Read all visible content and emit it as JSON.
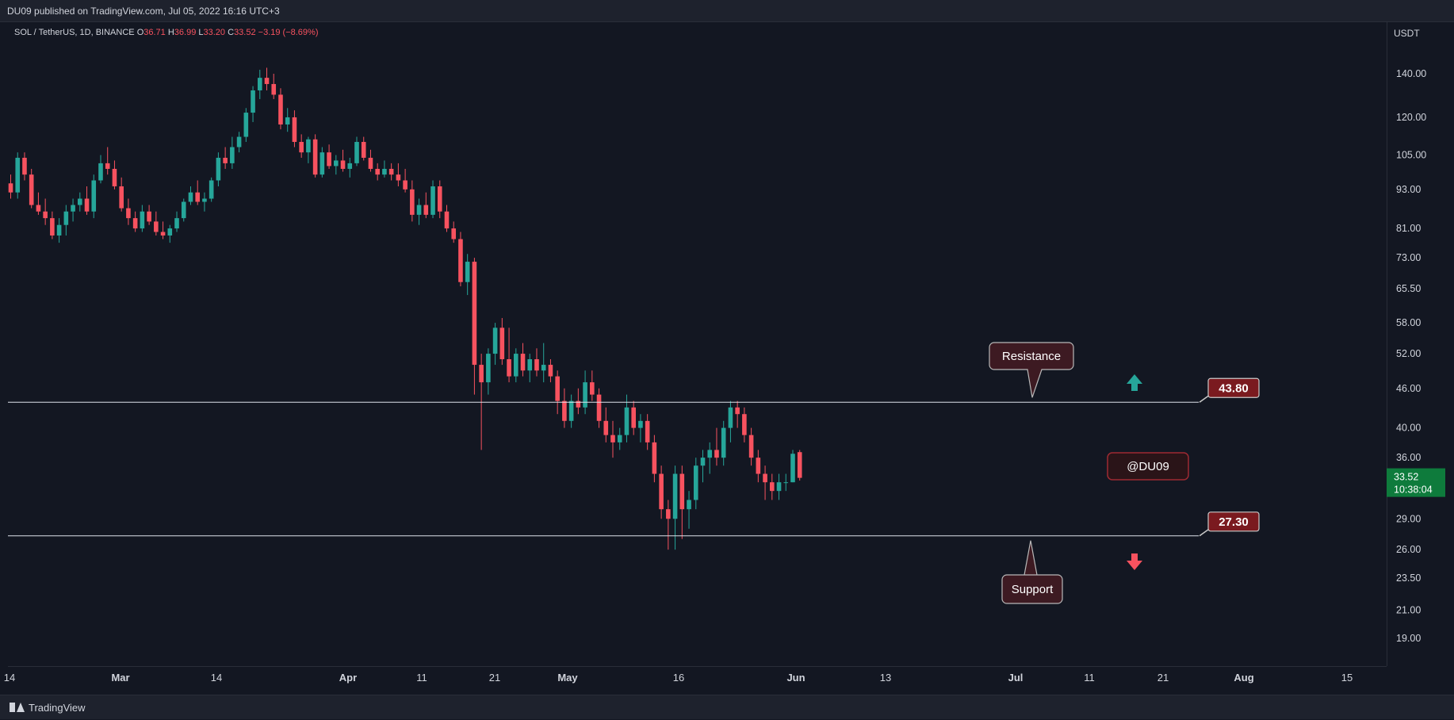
{
  "header": {
    "published": "DU09 published on TradingView.com, Jul 05, 2022 16:16 UTC+3"
  },
  "legend": {
    "symbol": "SOL / TetherUS, 1D, BINANCE",
    "o_label": "O",
    "o_value": "36.71",
    "h_label": "H",
    "h_value": "36.99",
    "l_label": "L",
    "l_value": "33.20",
    "c_label": "C",
    "c_value": "33.52",
    "change": "−3.19 (−8.69%)"
  },
  "footer": {
    "brand": "TradingView"
  },
  "colors": {
    "background": "#131722",
    "up": "#26a69a",
    "down": "#f7525f",
    "line": "#e0e3eb",
    "label_fill": "#7a1a1f",
    "callout_fill": "#3d1a22",
    "last_price": "#0e7b3c",
    "axis_text": "#d1d4dc"
  },
  "chart_data": {
    "type": "candlestick",
    "scale": "log",
    "currency_label": "USDT",
    "ylim": [
      17,
      150
    ],
    "y_ticks": [
      "140.00",
      "120.00",
      "105.00",
      "93.00",
      "81.00",
      "73.00",
      "65.50",
      "58.00",
      "52.00",
      "46.00",
      "40.00",
      "36.00",
      "29.00",
      "26.00",
      "23.50",
      "21.00",
      "19.00"
    ],
    "x_ticks": [
      "14",
      "Mar",
      "14",
      "Apr",
      "11",
      "21",
      "May",
      "16",
      "Jun",
      "13",
      "Jul",
      "11",
      "21",
      "Aug",
      "15"
    ],
    "last_price": "33.52",
    "countdown": "10:38:04",
    "levels": [
      {
        "name": "Resistance",
        "value": 43.8,
        "label": "43.80"
      },
      {
        "name": "Support",
        "value": 27.3,
        "label": "27.30"
      }
    ],
    "watermark": "@DU09",
    "candles": [
      [
        95,
        98,
        90,
        92
      ],
      [
        92,
        106,
        90,
        104
      ],
      [
        104,
        106,
        96,
        98
      ],
      [
        98,
        100,
        87,
        88
      ],
      [
        88,
        92,
        85,
        86
      ],
      [
        86,
        90,
        82,
        84
      ],
      [
        84,
        86,
        78,
        79
      ],
      [
        79,
        84,
        77,
        82
      ],
      [
        82,
        88,
        79,
        86
      ],
      [
        86,
        90,
        83,
        88
      ],
      [
        88,
        92,
        86,
        90
      ],
      [
        90,
        94,
        85,
        86
      ],
      [
        86,
        98,
        84,
        96
      ],
      [
        96,
        105,
        95,
        102
      ],
      [
        102,
        108,
        98,
        100
      ],
      [
        100,
        103,
        93,
        94
      ],
      [
        94,
        97,
        86,
        87
      ],
      [
        87,
        90,
        82,
        84
      ],
      [
        84,
        86,
        80,
        81
      ],
      [
        81,
        88,
        80,
        86
      ],
      [
        86,
        88,
        82,
        83
      ],
      [
        83,
        86,
        79,
        80
      ],
      [
        80,
        83,
        78,
        79
      ],
      [
        79,
        82,
        77,
        81
      ],
      [
        81,
        86,
        80,
        84
      ],
      [
        84,
        90,
        83,
        89
      ],
      [
        89,
        94,
        88,
        92
      ],
      [
        92,
        96,
        88,
        89
      ],
      [
        89,
        92,
        86,
        90
      ],
      [
        90,
        97,
        89,
        96
      ],
      [
        96,
        106,
        94,
        104
      ],
      [
        104,
        108,
        100,
        102
      ],
      [
        102,
        112,
        100,
        108
      ],
      [
        108,
        114,
        106,
        112
      ],
      [
        112,
        124,
        110,
        122
      ],
      [
        122,
        134,
        118,
        132
      ],
      [
        132,
        142,
        128,
        138
      ],
      [
        138,
        143,
        132,
        135
      ],
      [
        135,
        140,
        128,
        130
      ],
      [
        130,
        133,
        115,
        117
      ],
      [
        117,
        124,
        114,
        120
      ],
      [
        120,
        123,
        108,
        110
      ],
      [
        110,
        113,
        104,
        106
      ],
      [
        106,
        112,
        102,
        111
      ],
      [
        111,
        113,
        97,
        98
      ],
      [
        98,
        108,
        97,
        106
      ],
      [
        106,
        109,
        100,
        101
      ],
      [
        101,
        105,
        98,
        103
      ],
      [
        103,
        107,
        99,
        100
      ],
      [
        100,
        104,
        97,
        102
      ],
      [
        102,
        112,
        101,
        110
      ],
      [
        110,
        112,
        103,
        104
      ],
      [
        104,
        107,
        99,
        100
      ],
      [
        100,
        102,
        96,
        98
      ],
      [
        98,
        103,
        97,
        100
      ],
      [
        100,
        102,
        96,
        98
      ],
      [
        98,
        102,
        94,
        96
      ],
      [
        96,
        100,
        92,
        93
      ],
      [
        93,
        96,
        83,
        85
      ],
      [
        85,
        90,
        82,
        88
      ],
      [
        88,
        92,
        84,
        85
      ],
      [
        85,
        96,
        84,
        94
      ],
      [
        94,
        96,
        84,
        86
      ],
      [
        86,
        88,
        80,
        81
      ],
      [
        81,
        83,
        77,
        78
      ],
      [
        78,
        80,
        66,
        67
      ],
      [
        67,
        74,
        64,
        72
      ],
      [
        72,
        73,
        45,
        50
      ],
      [
        50,
        52,
        37,
        47
      ],
      [
        47,
        53,
        45,
        52
      ],
      [
        52,
        58,
        50,
        57
      ],
      [
        57,
        59,
        50,
        51
      ],
      [
        51,
        57,
        47,
        48
      ],
      [
        48,
        53,
        47,
        52
      ],
      [
        52,
        54,
        48,
        49
      ],
      [
        49,
        52,
        47,
        51
      ],
      [
        51,
        53,
        48,
        49
      ],
      [
        49,
        54,
        47,
        50
      ],
      [
        50,
        51,
        47,
        48
      ],
      [
        48,
        49,
        42,
        44
      ],
      [
        44,
        46,
        40,
        41
      ],
      [
        41,
        45,
        40,
        44
      ],
      [
        44,
        46,
        42,
        43
      ],
      [
        43,
        49,
        42,
        47
      ],
      [
        47,
        49,
        44,
        45
      ],
      [
        45,
        46,
        40,
        41
      ],
      [
        41,
        43,
        38,
        39
      ],
      [
        39,
        41,
        36,
        38
      ],
      [
        38,
        40,
        37,
        39
      ],
      [
        39,
        45,
        38,
        43
      ],
      [
        43,
        44,
        39,
        40
      ],
      [
        40,
        42,
        38,
        41
      ],
      [
        41,
        42,
        37,
        38
      ],
      [
        38,
        39,
        33,
        34
      ],
      [
        34,
        35,
        29,
        30
      ],
      [
        30,
        31,
        26,
        29
      ],
      [
        29,
        35,
        26,
        34
      ],
      [
        34,
        35,
        27,
        30
      ],
      [
        30,
        32,
        28,
        31
      ],
      [
        31,
        36,
        30,
        35
      ],
      [
        35,
        37,
        33,
        36
      ],
      [
        36,
        38,
        34,
        37
      ],
      [
        37,
        40,
        35,
        36
      ],
      [
        36,
        41,
        35,
        40
      ],
      [
        40,
        44,
        38,
        43
      ],
      [
        43,
        44,
        40,
        42
      ],
      [
        42,
        43,
        38,
        39
      ],
      [
        39,
        40,
        35,
        36
      ],
      [
        36,
        37,
        33,
        34
      ],
      [
        34,
        35,
        31,
        33
      ],
      [
        33,
        34,
        31,
        32
      ],
      [
        32,
        34,
        31,
        33
      ],
      [
        33,
        34,
        32,
        33
      ],
      [
        33,
        37,
        33,
        36.5
      ],
      [
        36.71,
        36.99,
        33.2,
        33.52
      ]
    ]
  }
}
